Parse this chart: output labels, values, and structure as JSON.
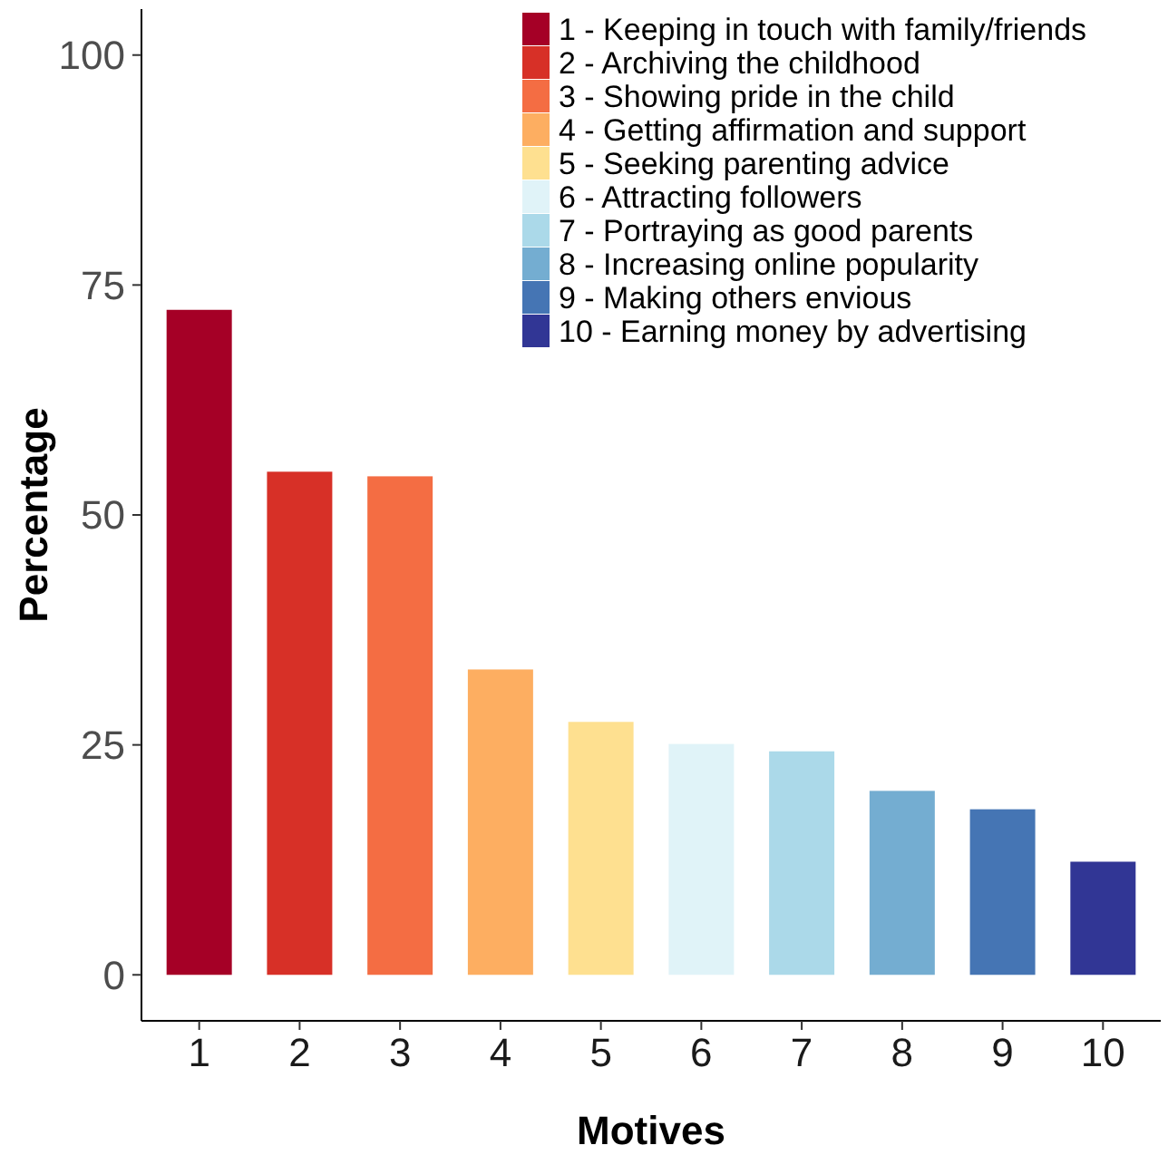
{
  "chart_data": {
    "type": "bar",
    "xlabel": "Motives",
    "ylabel": "Percentage",
    "categories": [
      "1",
      "2",
      "3",
      "4",
      "5",
      "6",
      "7",
      "8",
      "9",
      "10"
    ],
    "series": [
      {
        "name": "1 - Keeping in touch with family/friends",
        "color": "#a50026",
        "values": [
          72.3,
          null,
          null,
          null,
          null,
          null,
          null,
          null,
          null,
          null
        ]
      },
      {
        "name": "2 - Archiving the childhood",
        "color": "#d73027",
        "values": [
          null,
          54.7,
          null,
          null,
          null,
          null,
          null,
          null,
          null,
          null
        ]
      },
      {
        "name": "3 - Showing pride in the child",
        "color": "#f46d43",
        "values": [
          null,
          null,
          54.2,
          null,
          null,
          null,
          null,
          null,
          null,
          null
        ]
      },
      {
        "name": "4 - Getting affirmation and support",
        "color": "#fdae61",
        "values": [
          null,
          null,
          null,
          33.2,
          null,
          null,
          null,
          null,
          null,
          null
        ]
      },
      {
        "name": "5 - Seeking parenting advice",
        "color": "#fee090",
        "values": [
          null,
          null,
          null,
          null,
          27.5,
          null,
          null,
          null,
          null,
          null
        ]
      },
      {
        "name": "6 - Attracting followers",
        "color": "#e0f3f8",
        "values": [
          null,
          null,
          null,
          null,
          null,
          25.1,
          null,
          null,
          null,
          null
        ]
      },
      {
        "name": "7 - Portraying as good parents",
        "color": "#abd9e9",
        "values": [
          null,
          null,
          null,
          null,
          null,
          null,
          24.3,
          null,
          null,
          null
        ]
      },
      {
        "name": "8 - Increasing online popularity",
        "color": "#74add1",
        "values": [
          null,
          null,
          null,
          null,
          null,
          null,
          null,
          20.0,
          null,
          null
        ]
      },
      {
        "name": "9 - Making others envious",
        "color": "#4575b4",
        "values": [
          null,
          null,
          null,
          null,
          null,
          null,
          null,
          null,
          18.0,
          null
        ]
      },
      {
        "name": "10 - Earning money by advertising",
        "color": "#313695",
        "values": [
          null,
          null,
          null,
          null,
          null,
          null,
          null,
          null,
          null,
          12.3
        ]
      }
    ],
    "ylim": [
      -5,
      105
    ],
    "yticks": [
      0,
      25,
      50,
      75,
      100
    ],
    "grid": false,
    "legend": "top right"
  }
}
